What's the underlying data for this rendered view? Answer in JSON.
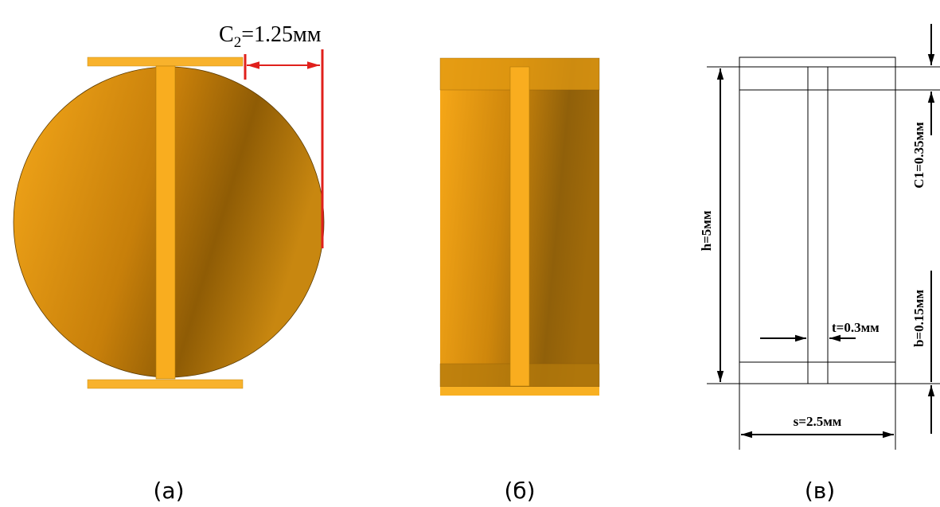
{
  "panel_a": {
    "dimension": {
      "main": "C",
      "sub": "2",
      "rest": "=1.25мм"
    },
    "caption": "(а)"
  },
  "panel_b": {
    "caption": "(б)"
  },
  "panel_c": {
    "h": "h=5мм",
    "c1": "C1=0.35мм",
    "b": "b=0.15мм",
    "t": "t=0.3мм",
    "s": "s=2.5мм",
    "caption": "(в)"
  }
}
